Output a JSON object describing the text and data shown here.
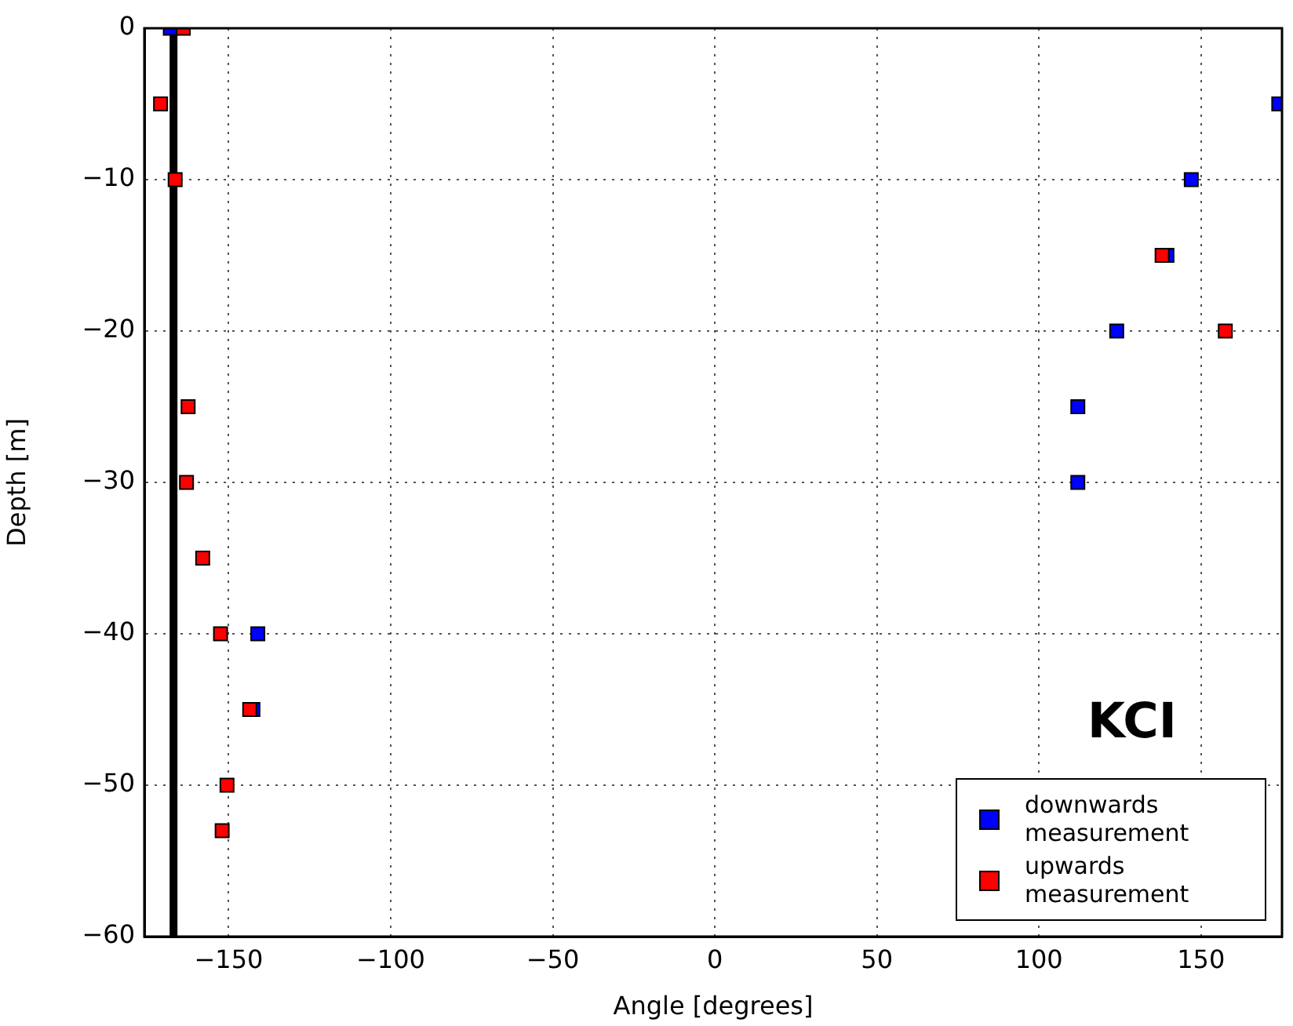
{
  "chart_data": {
    "type": "scatter",
    "xlabel": "Angle [degrees]",
    "ylabel": "Depth [m]",
    "annotations": [
      "KCI"
    ],
    "series": [
      {
        "name": "downwards measurement",
        "color": "#0000ff",
        "x": [
          -168,
          174,
          147,
          139.5,
          124,
          112,
          112,
          -141,
          -142.5
        ],
        "values": [
          0,
          -5,
          -10,
          -15,
          -20,
          -25,
          -30,
          -40,
          -45
        ]
      },
      {
        "name": "upwards measurement",
        "color": "#ff0000",
        "x": [
          -164,
          -171,
          -166.5,
          138,
          157.5,
          -162.5,
          -163,
          -158,
          -152.5,
          -143.5,
          -150.5,
          -152
        ],
        "values": [
          0,
          -5,
          -10,
          -15,
          -20,
          -25,
          -30,
          -35,
          -40,
          -45,
          -50,
          -53
        ]
      }
    ],
    "xlim": [
      -176,
      175
    ],
    "xticks": [
      {
        "value": -150,
        "label": "−150"
      },
      {
        "value": -100,
        "label": "−100"
      },
      {
        "value": -50,
        "label": "−50"
      },
      0,
      50,
      100,
      150
    ],
    "ylim": [
      -60,
      0
    ],
    "yticks": [
      {
        "value": -60,
        "label": "−60"
      },
      {
        "value": -50,
        "label": "−50"
      },
      {
        "value": -40,
        "label": "−40"
      },
      {
        "value": -30,
        "label": "−30"
      },
      {
        "value": -20,
        "label": "−20"
      },
      {
        "value": -10,
        "label": "−10"
      },
      0
    ],
    "ref_lines": [
      {
        "axis": "x",
        "value": -167,
        "color": "#000000",
        "line_style": "solid"
      }
    ],
    "grid": true,
    "legend": "bottom right",
    "marker": "square"
  }
}
